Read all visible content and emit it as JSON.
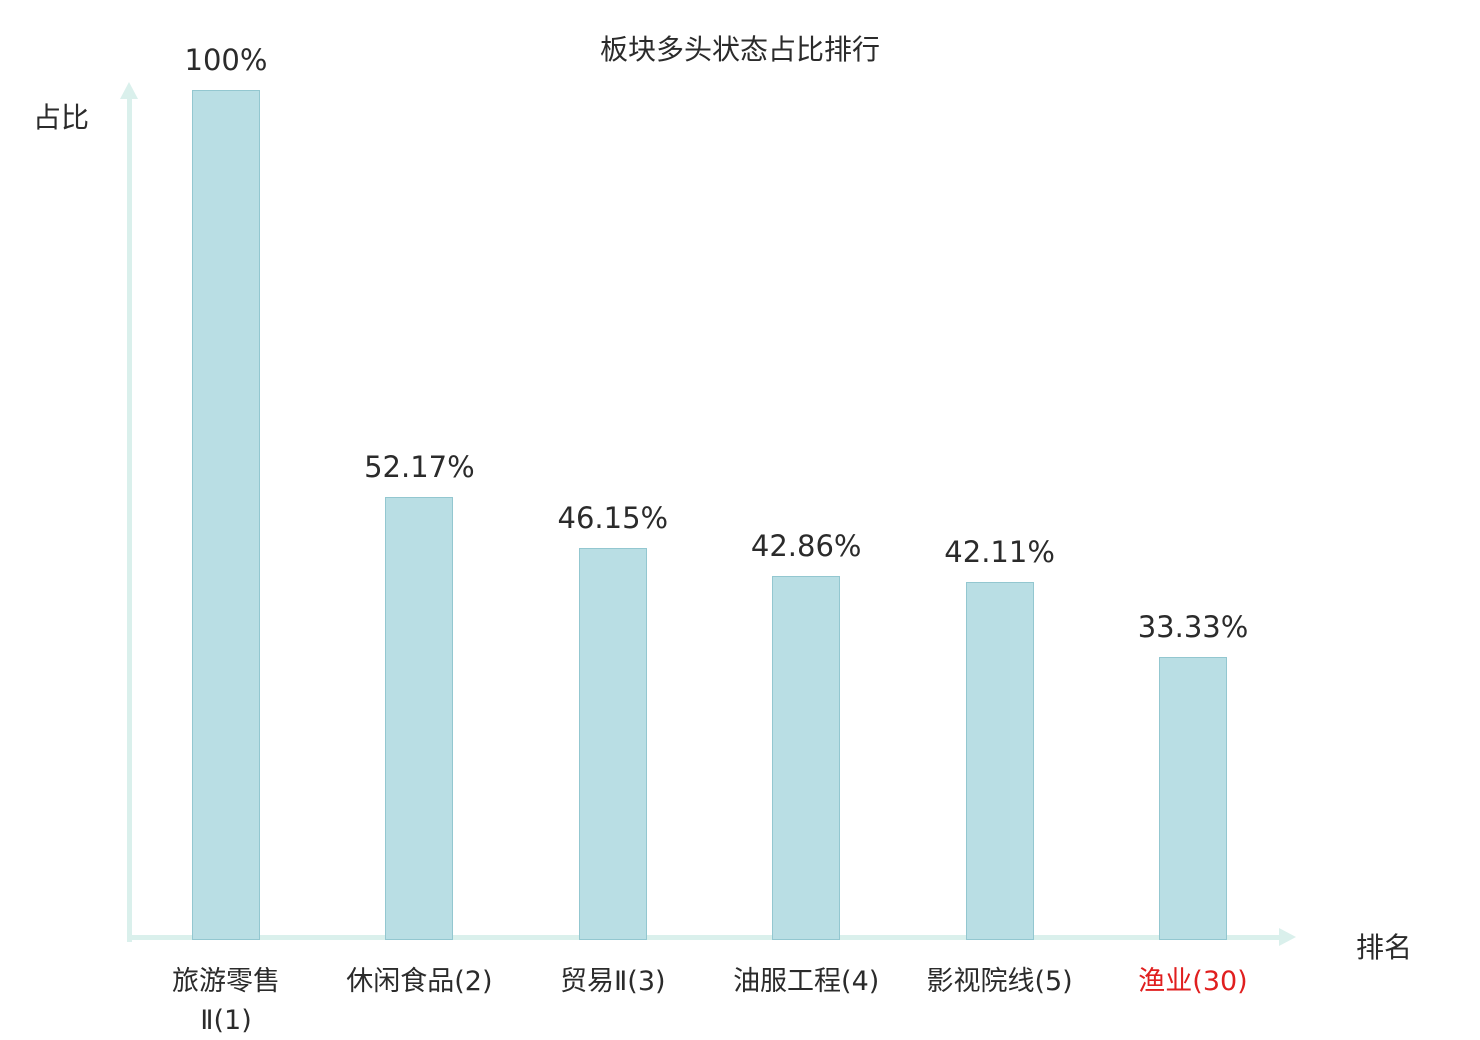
{
  "chart_data": {
    "type": "bar",
    "title": "板块多头状态占比排行",
    "xlabel": "排名",
    "ylabel": "占比",
    "ylim": [
      0,
      100
    ],
    "grid": false,
    "legend_position": "none",
    "categories": [
      "旅游零售\nⅡ(1)",
      "休闲食品(2)",
      "贸易Ⅱ(3)",
      "油服工程(4)",
      "影视院线(5)",
      "渔业(30)"
    ],
    "values": [
      100,
      52.17,
      46.15,
      42.86,
      42.11,
      33.33
    ],
    "value_labels": [
      "100%",
      "52.17%",
      "46.15%",
      "42.86%",
      "42.11%",
      "33.33%"
    ],
    "category_label_colors": [
      "#2b2b2b",
      "#2b2b2b",
      "#2b2b2b",
      "#2b2b2b",
      "#2b2b2b",
      "#e01f1f"
    ],
    "colors": {
      "bar_fill": "#b9dee4",
      "bar_border": "#93c7d0",
      "axis": "#daf0ec",
      "text": "#2b2b2b",
      "highlight_text": "#e01f1f"
    }
  }
}
